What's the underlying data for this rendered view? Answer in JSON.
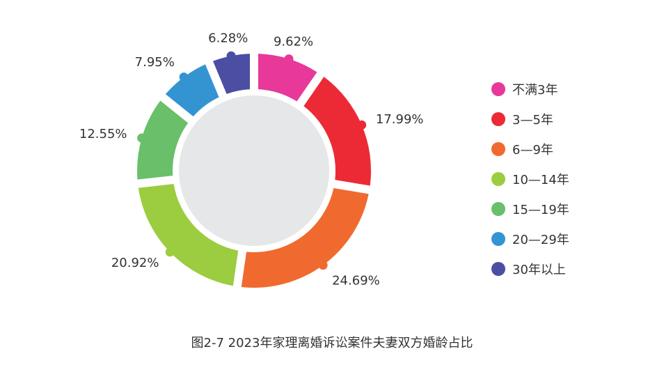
{
  "chart_data": {
    "type": "pie",
    "categories": [
      "不满3年",
      "3—5年",
      "6—9年",
      "10—14年",
      "15—19年",
      "20—29年",
      "30年以上"
    ],
    "values": [
      9.62,
      17.99,
      24.69,
      20.92,
      12.55,
      7.95,
      6.28
    ],
    "value_labels": [
      "9.62%",
      "17.99%",
      "24.69%",
      "20.92%",
      "12.55%",
      "7.95%",
      "6.28%"
    ],
    "unit": "%",
    "colors": [
      "#e8389a",
      "#ec2a35",
      "#f06a30",
      "#9ccc3f",
      "#69bf6a",
      "#3494d2",
      "#4b4ea3"
    ],
    "inner_color": "#e6e7e8",
    "legend_position": "right",
    "title": "图2-7  2023年家理离婚诉讼案件夫妻双方婚龄占比"
  }
}
